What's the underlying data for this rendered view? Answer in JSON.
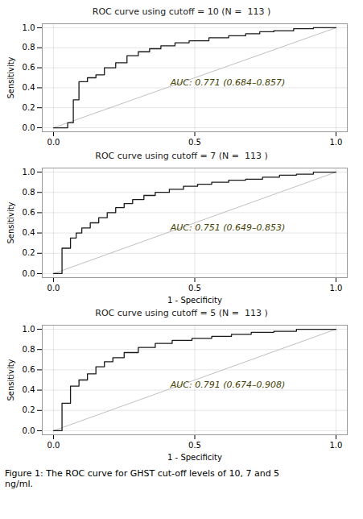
{
  "chart_data": [
    {
      "type": "line",
      "title": "ROC curve using cutoff = 10 (N =  113 )",
      "ylabel": "Sensitivity",
      "xlim": [
        -0.04,
        1.04
      ],
      "ylim": [
        -0.04,
        1.04
      ],
      "xticks": [
        0,
        0.5,
        1
      ],
      "yticks": [
        0,
        0.2,
        0.4,
        0.6,
        0.8,
        1.0
      ],
      "grid": true,
      "series": [
        {
          "type": "line",
          "color": "#c0c0c0",
          "x": [
            0,
            1
          ],
          "values": [
            0,
            1
          ]
        },
        {
          "type": "step",
          "color": "#1a1a1a",
          "x": [
            0.0,
            0.05,
            0.05,
            0.07,
            0.07,
            0.09,
            0.09,
            0.12,
            0.12,
            0.15,
            0.15,
            0.18,
            0.18,
            0.22,
            0.22,
            0.26,
            0.26,
            0.3,
            0.3,
            0.34,
            0.34,
            0.38,
            0.38,
            0.43,
            0.43,
            0.48,
            0.48,
            0.55,
            0.55,
            0.62,
            0.62,
            0.68,
            0.68,
            0.73,
            0.73,
            0.78,
            0.78,
            0.85,
            0.85,
            0.92,
            0.92,
            1.0
          ],
          "values": [
            0.0,
            0.0,
            0.05,
            0.05,
            0.28,
            0.28,
            0.46,
            0.46,
            0.5,
            0.5,
            0.53,
            0.53,
            0.6,
            0.6,
            0.65,
            0.65,
            0.72,
            0.72,
            0.76,
            0.76,
            0.79,
            0.79,
            0.82,
            0.82,
            0.85,
            0.85,
            0.87,
            0.87,
            0.9,
            0.9,
            0.92,
            0.92,
            0.94,
            0.94,
            0.96,
            0.96,
            0.97,
            0.97,
            0.99,
            0.99,
            1.0,
            1.0
          ]
        }
      ],
      "annotations": [
        {
          "text": "AUC: 0.771 (0.684–0.857)",
          "color": "#444400"
        }
      ]
    },
    {
      "type": "line",
      "title": "ROC curve using cutoff = 7 (N =  113 )",
      "xlabel": "1 - Specificity",
      "ylabel": "Sensitivity",
      "xlim": [
        -0.04,
        1.04
      ],
      "ylim": [
        -0.04,
        1.04
      ],
      "xticks": [
        0,
        0.5,
        1
      ],
      "yticks": [
        0,
        0.2,
        0.4,
        0.6,
        0.8,
        1.0
      ],
      "grid": true,
      "series": [
        {
          "type": "line",
          "color": "#c0c0c0",
          "x": [
            0,
            1
          ],
          "values": [
            0,
            1
          ]
        },
        {
          "type": "step",
          "color": "#1a1a1a",
          "x": [
            0.0,
            0.03,
            0.03,
            0.06,
            0.06,
            0.08,
            0.08,
            0.1,
            0.1,
            0.13,
            0.13,
            0.16,
            0.16,
            0.19,
            0.19,
            0.22,
            0.22,
            0.25,
            0.25,
            0.28,
            0.28,
            0.32,
            0.32,
            0.36,
            0.36,
            0.41,
            0.41,
            0.46,
            0.46,
            0.51,
            0.51,
            0.56,
            0.56,
            0.62,
            0.62,
            0.68,
            0.68,
            0.74,
            0.74,
            0.8,
            0.8,
            0.86,
            0.86,
            0.92,
            0.92,
            1.0
          ],
          "values": [
            0.0,
            0.0,
            0.25,
            0.25,
            0.35,
            0.35,
            0.4,
            0.4,
            0.45,
            0.45,
            0.5,
            0.5,
            0.55,
            0.55,
            0.6,
            0.6,
            0.65,
            0.65,
            0.69,
            0.69,
            0.73,
            0.73,
            0.77,
            0.77,
            0.8,
            0.8,
            0.83,
            0.83,
            0.86,
            0.86,
            0.88,
            0.88,
            0.9,
            0.9,
            0.92,
            0.92,
            0.93,
            0.93,
            0.95,
            0.95,
            0.97,
            0.97,
            0.98,
            0.98,
            1.0,
            1.0
          ]
        }
      ],
      "annotations": [
        {
          "text": "AUC: 0.751 (0.649–0.853)",
          "color": "#444400"
        }
      ]
    },
    {
      "type": "line",
      "title": "ROC curve using cutoff = 5 (N =  113 )",
      "xlabel": "1 - Specificity",
      "ylabel": "Sensitivity",
      "xlim": [
        -0.04,
        1.04
      ],
      "ylim": [
        -0.04,
        1.04
      ],
      "xticks": [
        0,
        0.5,
        1
      ],
      "yticks": [
        0,
        0.2,
        0.4,
        0.6,
        0.8,
        1.0
      ],
      "grid": true,
      "series": [
        {
          "type": "line",
          "color": "#c0c0c0",
          "x": [
            0,
            1
          ],
          "values": [
            0,
            1
          ]
        },
        {
          "type": "step",
          "color": "#1a1a1a",
          "x": [
            0.0,
            0.03,
            0.03,
            0.06,
            0.06,
            0.09,
            0.09,
            0.12,
            0.12,
            0.15,
            0.15,
            0.18,
            0.18,
            0.21,
            0.21,
            0.25,
            0.25,
            0.3,
            0.3,
            0.36,
            0.36,
            0.42,
            0.42,
            0.49,
            0.49,
            0.56,
            0.56,
            0.63,
            0.63,
            0.7,
            0.7,
            0.78,
            0.78,
            0.86,
            0.86,
            0.93,
            0.93,
            1.0
          ],
          "values": [
            0.0,
            0.0,
            0.27,
            0.27,
            0.44,
            0.44,
            0.5,
            0.5,
            0.56,
            0.56,
            0.63,
            0.63,
            0.68,
            0.68,
            0.72,
            0.72,
            0.77,
            0.77,
            0.82,
            0.82,
            0.86,
            0.86,
            0.89,
            0.89,
            0.91,
            0.91,
            0.93,
            0.93,
            0.95,
            0.95,
            0.97,
            0.97,
            0.98,
            0.98,
            1.0,
            1.0,
            1.0,
            1.0
          ]
        }
      ],
      "annotations": [
        {
          "text": "AUC: 0.791 (0.674–0.908)",
          "color": "#444400"
        }
      ]
    }
  ],
  "caption": "Figure 1: The ROC curve for GHST cut-off levels of 10, 7 and 5\nng/ml."
}
